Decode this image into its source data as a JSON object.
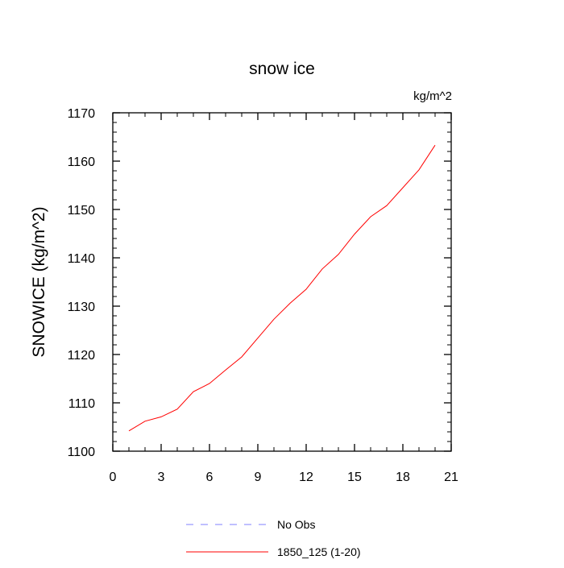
{
  "chart_data": {
    "type": "line",
    "title": "snow ice",
    "units_label": "kg/m^2",
    "ylabel": "SNOWICE  (kg/m^2)",
    "xlabel": "",
    "xlim": [
      0,
      21
    ],
    "ylim": [
      1100,
      1170
    ],
    "x_ticks": [
      0,
      3,
      6,
      9,
      12,
      15,
      18,
      21
    ],
    "y_ticks": [
      1100,
      1110,
      1120,
      1130,
      1140,
      1150,
      1160,
      1170
    ],
    "grid": false,
    "legend_position": "bottom",
    "series": [
      {
        "name": "No Obs",
        "color": "#8080ff",
        "dashed": true,
        "x": [],
        "values": []
      },
      {
        "name": "1850_125 (1-20)",
        "color": "#ff0000",
        "dashed": false,
        "x": [
          1,
          2,
          3,
          4,
          5,
          6,
          7,
          8,
          9,
          10,
          11,
          12,
          13,
          14,
          15,
          16,
          17,
          18,
          19,
          20
        ],
        "values": [
          1104.2,
          1106.2,
          1107.1,
          1108.7,
          1112.3,
          1114.0,
          1116.8,
          1119.5,
          1123.4,
          1127.3,
          1130.6,
          1133.5,
          1137.7,
          1140.7,
          1144.9,
          1148.5,
          1150.8,
          1154.5,
          1158.2,
          1163.3
        ]
      }
    ]
  }
}
